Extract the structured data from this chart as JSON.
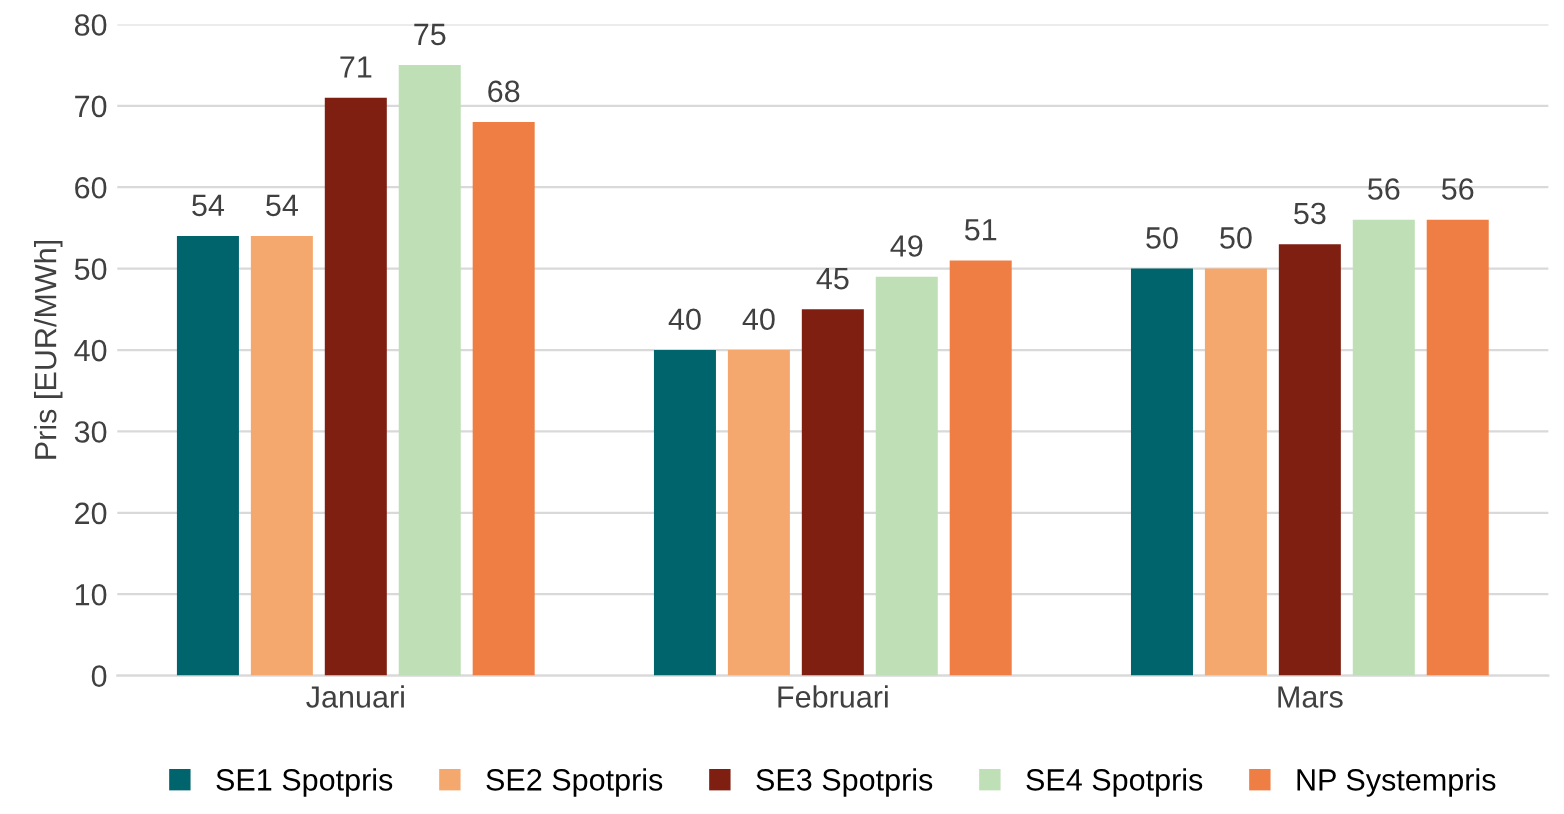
{
  "chart_data": {
    "type": "bar",
    "ylabel": "Pris [EUR/MWh]",
    "categories": [
      "Januari",
      "Februari",
      "Mars"
    ],
    "series": [
      {
        "name": "SE1 Spotpris",
        "color": "#00646c",
        "values": [
          54,
          40,
          50
        ]
      },
      {
        "name": "SE2 Spotpris",
        "color": "#f5a86e",
        "values": [
          54,
          40,
          50
        ]
      },
      {
        "name": "SE3 Spotpris",
        "color": "#7f1f12",
        "values": [
          71,
          45,
          53
        ]
      },
      {
        "name": "SE4 Spotpris",
        "color": "#bfdfb6",
        "values": [
          75,
          49,
          56
        ]
      },
      {
        "name": "NP Systempris",
        "color": "#ef7e44",
        "values": [
          68,
          51,
          56
        ]
      }
    ],
    "ylim": [
      0,
      80
    ],
    "yticks": [
      0,
      10,
      20,
      30,
      40,
      50,
      60,
      70,
      80
    ],
    "grid": "y",
    "legend": "bottom",
    "data_labels": true
  }
}
